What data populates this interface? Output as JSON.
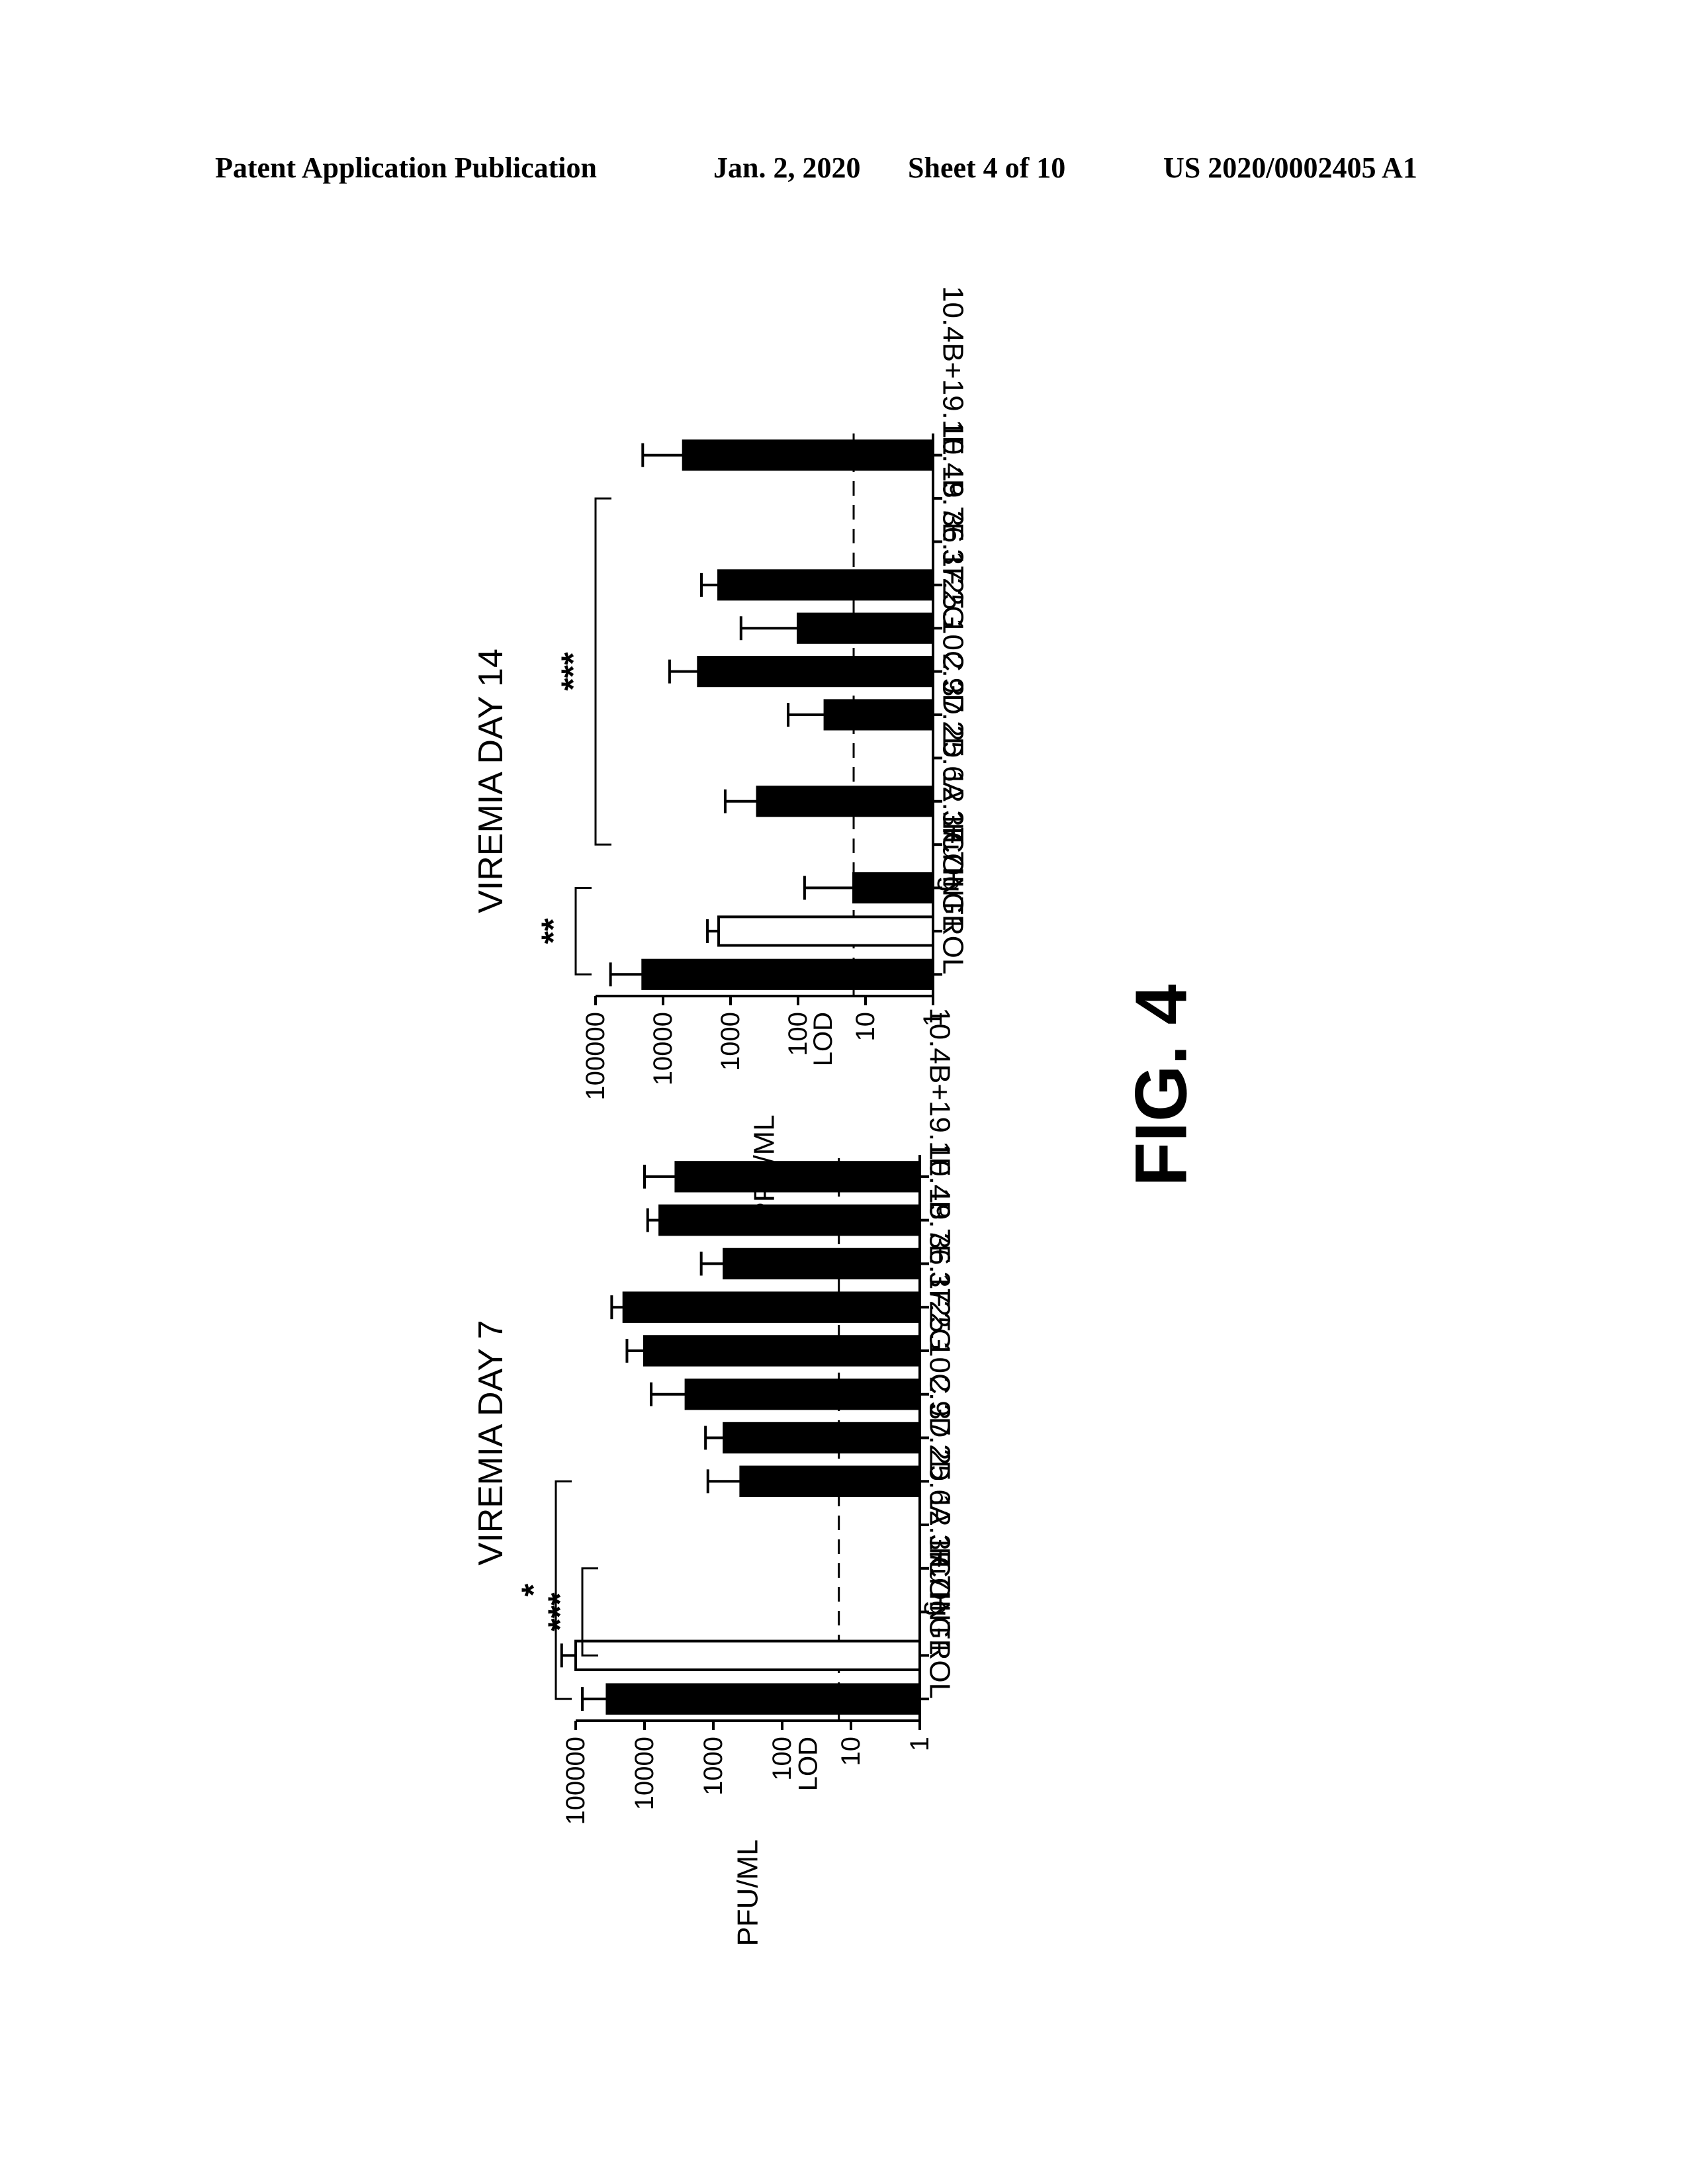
{
  "header": {
    "left": "Patent Application Publication",
    "date": "Jan. 2, 2020",
    "sheet": "Sheet 4 of 10",
    "number": "US 2020/0002405 A1"
  },
  "figure_label": "FIG. 4",
  "chart_data": [
    {
      "type": "bar",
      "title": "VIREMIA DAY 7",
      "ylabel": "PFU/ML",
      "yscale": "log",
      "ylim": [
        1,
        100000
      ],
      "yticks": [
        "1",
        "10",
        "100",
        "1000",
        "10000",
        "100000"
      ],
      "lod_label": "LOD",
      "lod_value": 15,
      "categories": [
        "CONTROL",
        "Hu IgG1",
        "37.7H",
        "12.1F",
        "25.6A",
        "37.2D",
        "2.9D",
        "25.10C",
        "37.2G",
        "36.1F",
        "19.7E",
        "10.4B",
        "10.4B+19.1E"
      ],
      "values": [
        35000,
        100000,
        null,
        null,
        null,
        400,
        700,
        2500,
        10000,
        20000,
        700,
        6000,
        3500
      ],
      "errors_upper": [
        80000,
        160000,
        null,
        null,
        null,
        1200,
        1300,
        8000,
        18000,
        30000,
        1500,
        9000,
        10000
      ],
      "bar_colors": [
        "#000000",
        "#ffffff",
        "#000000",
        "#000000",
        "#000000",
        "#000000",
        "#000000",
        "#000000",
        "#000000",
        "#000000",
        "#000000",
        "#000000",
        "#000000"
      ],
      "significance": [
        {
          "label": "*",
          "from": "CONTROL",
          "to": "37.2D"
        },
        {
          "label": "***",
          "from": "Hu IgG1",
          "to": "12.1F"
        }
      ]
    },
    {
      "type": "bar",
      "title": "VIREMIA DAY 14",
      "ylabel": "PFU/ML",
      "yscale": "log",
      "ylim": [
        1,
        100000
      ],
      "yticks": [
        "1",
        "10",
        "100",
        "1000",
        "10000",
        "100000"
      ],
      "lod_label": "LOD",
      "lod_value": 15,
      "categories": [
        "CONTROL",
        "Hu IgG1",
        "37.7H",
        "12.1F",
        "25.6A",
        "37.2D",
        "2.9D",
        "25.10C",
        "37.2G",
        "36.1F",
        "19.7E",
        "10.4B",
        "10.4B+19.1E"
      ],
      "values": [
        20000,
        1500,
        15,
        null,
        400,
        null,
        40,
        3000,
        100,
        1500,
        null,
        null,
        5000
      ],
      "errors_upper": [
        60000,
        2200,
        80,
        null,
        1200,
        null,
        140,
        8000,
        700,
        2700,
        null,
        null,
        20000
      ],
      "bar_colors": [
        "#000000",
        "#ffffff",
        "#000000",
        "#000000",
        "#000000",
        "#000000",
        "#000000",
        "#000000",
        "#000000",
        "#000000",
        "#000000",
        "#000000",
        "#000000"
      ],
      "significance": [
        {
          "label": "**",
          "from": "CONTROL",
          "to": "37.7H"
        },
        {
          "label": "***",
          "from": "12.1F",
          "to": "10.4B"
        }
      ]
    }
  ]
}
